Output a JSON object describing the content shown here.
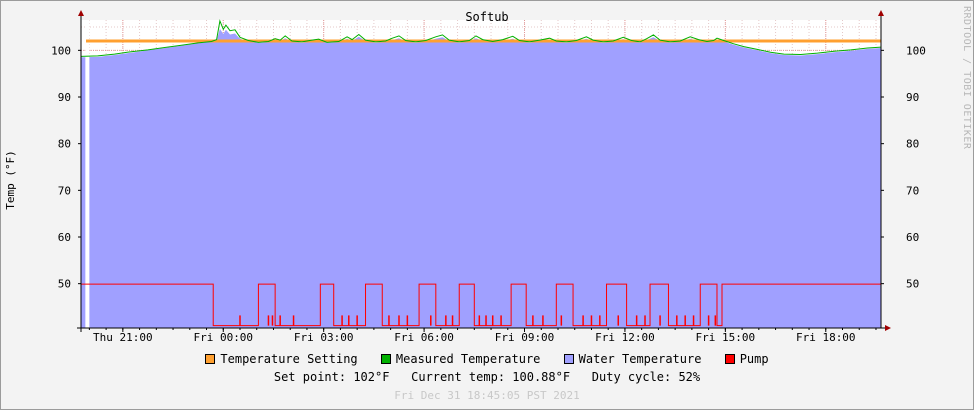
{
  "chart_data": {
    "type": "area",
    "title": "Softub",
    "ylabel": "Temp (°F)",
    "y_ticks": [
      50,
      60,
      70,
      80,
      90,
      100
    ],
    "y_tick_labels": [
      "50",
      "60",
      "70",
      "80",
      "90",
      "100"
    ],
    "ylim": [
      40.5,
      106.5
    ],
    "x_ticks": [
      {
        "t": 1.25,
        "label": "Thu 21:00"
      },
      {
        "t": 4.25,
        "label": "Fri 00:00"
      },
      {
        "t": 7.25,
        "label": "Fri 03:00"
      },
      {
        "t": 10.25,
        "label": "Fri 06:00"
      },
      {
        "t": 13.25,
        "label": "Fri 09:00"
      },
      {
        "t": 16.25,
        "label": "Fri 12:00"
      },
      {
        "t": 19.25,
        "label": "Fri 15:00"
      },
      {
        "t": 22.25,
        "label": "Fri 18:00"
      }
    ],
    "xlim": [
      0,
      23.9
    ],
    "grid": true,
    "series": [
      {
        "name": "Temperature Setting",
        "color": "#ffa030",
        "kind": "line",
        "points": [
          [
            0.15,
            102
          ],
          [
            23.9,
            102
          ]
        ]
      },
      {
        "name": "Measured Temperature",
        "color": "#00b000",
        "kind": "line",
        "points": [
          [
            0,
            98.7
          ],
          [
            0.5,
            98.8
          ],
          [
            1.0,
            99.2
          ],
          [
            1.5,
            99.7
          ],
          [
            2.0,
            100.1
          ],
          [
            2.5,
            100.6
          ],
          [
            3.0,
            101.1
          ],
          [
            3.5,
            101.6
          ],
          [
            3.9,
            101.9
          ],
          [
            4.05,
            102.3
          ],
          [
            4.15,
            106.3
          ],
          [
            4.25,
            104.5
          ],
          [
            4.33,
            105.4
          ],
          [
            4.45,
            104.2
          ],
          [
            4.6,
            104.4
          ],
          [
            4.75,
            102.8
          ],
          [
            5.0,
            102.1
          ],
          [
            5.3,
            101.7
          ],
          [
            5.6,
            101.9
          ],
          [
            5.8,
            102.5
          ],
          [
            5.95,
            102.2
          ],
          [
            6.1,
            103.1
          ],
          [
            6.3,
            102.0
          ],
          [
            6.6,
            101.8
          ],
          [
            6.9,
            102.2
          ],
          [
            7.1,
            102.4
          ],
          [
            7.35,
            101.7
          ],
          [
            7.7,
            101.9
          ],
          [
            7.95,
            102.9
          ],
          [
            8.1,
            102.3
          ],
          [
            8.3,
            103.4
          ],
          [
            8.5,
            102.2
          ],
          [
            8.8,
            101.8
          ],
          [
            9.1,
            102.0
          ],
          [
            9.3,
            102.6
          ],
          [
            9.5,
            103.1
          ],
          [
            9.7,
            102.1
          ],
          [
            10.0,
            101.8
          ],
          [
            10.3,
            102.1
          ],
          [
            10.6,
            102.9
          ],
          [
            10.8,
            103.3
          ],
          [
            11.0,
            102.2
          ],
          [
            11.3,
            101.8
          ],
          [
            11.6,
            102.1
          ],
          [
            11.8,
            103.1
          ],
          [
            12.0,
            102.3
          ],
          [
            12.3,
            101.9
          ],
          [
            12.6,
            102.3
          ],
          [
            12.9,
            103.0
          ],
          [
            13.1,
            102.1
          ],
          [
            13.4,
            101.8
          ],
          [
            13.7,
            102.2
          ],
          [
            14.0,
            102.6
          ],
          [
            14.2,
            102.0
          ],
          [
            14.5,
            101.8
          ],
          [
            14.8,
            102.1
          ],
          [
            15.1,
            102.9
          ],
          [
            15.3,
            102.2
          ],
          [
            15.6,
            101.8
          ],
          [
            15.9,
            102.0
          ],
          [
            16.2,
            102.8
          ],
          [
            16.45,
            102.1
          ],
          [
            16.7,
            101.8
          ],
          [
            16.9,
            102.5
          ],
          [
            17.1,
            103.3
          ],
          [
            17.3,
            102.2
          ],
          [
            17.6,
            101.8
          ],
          [
            17.9,
            102.0
          ],
          [
            18.2,
            102.9
          ],
          [
            18.45,
            102.3
          ],
          [
            18.7,
            101.9
          ],
          [
            18.9,
            102.1
          ],
          [
            19.0,
            102.6
          ],
          [
            19.2,
            102.1
          ],
          [
            19.5,
            101.4
          ],
          [
            19.8,
            100.8
          ],
          [
            20.2,
            100.2
          ],
          [
            20.6,
            99.6
          ],
          [
            21.0,
            99.2
          ],
          [
            21.5,
            99.1
          ],
          [
            22.0,
            99.4
          ],
          [
            22.5,
            99.8
          ],
          [
            23.0,
            100.1
          ],
          [
            23.5,
            100.5
          ],
          [
            23.9,
            100.7
          ]
        ]
      },
      {
        "name": "Water Temperature",
        "color": "#a0a0ff",
        "kind": "area",
        "points": [
          [
            0,
            98.5
          ],
          [
            0.5,
            98.6
          ],
          [
            1.0,
            99.0
          ],
          [
            1.5,
            99.5
          ],
          [
            2.0,
            100.0
          ],
          [
            2.5,
            100.5
          ],
          [
            3.0,
            101.0
          ],
          [
            3.5,
            101.5
          ],
          [
            3.9,
            101.8
          ],
          [
            4.05,
            102.1
          ],
          [
            4.15,
            104.6
          ],
          [
            4.25,
            103.5
          ],
          [
            4.33,
            104.4
          ],
          [
            4.45,
            103.4
          ],
          [
            4.6,
            103.6
          ],
          [
            4.75,
            102.5
          ],
          [
            5.0,
            101.9
          ],
          [
            5.3,
            101.6
          ],
          [
            5.6,
            101.7
          ],
          [
            5.8,
            102.2
          ],
          [
            5.95,
            102.0
          ],
          [
            6.1,
            102.6
          ],
          [
            6.3,
            101.8
          ],
          [
            6.6,
            101.6
          ],
          [
            6.9,
            101.9
          ],
          [
            7.1,
            102.1
          ],
          [
            7.35,
            101.6
          ],
          [
            7.7,
            101.7
          ],
          [
            7.95,
            102.5
          ],
          [
            8.1,
            102.0
          ],
          [
            8.3,
            102.9
          ],
          [
            8.5,
            102.0
          ],
          [
            8.8,
            101.6
          ],
          [
            9.1,
            101.8
          ],
          [
            9.3,
            102.2
          ],
          [
            9.5,
            102.6
          ],
          [
            9.7,
            101.9
          ],
          [
            10.0,
            101.6
          ],
          [
            10.3,
            101.9
          ],
          [
            10.6,
            102.5
          ],
          [
            10.8,
            102.8
          ],
          [
            11.0,
            102.0
          ],
          [
            11.3,
            101.6
          ],
          [
            11.6,
            101.9
          ],
          [
            11.8,
            102.6
          ],
          [
            12.0,
            102.0
          ],
          [
            12.3,
            101.7
          ],
          [
            12.6,
            102.0
          ],
          [
            12.9,
            102.5
          ],
          [
            13.1,
            101.9
          ],
          [
            13.4,
            101.6
          ],
          [
            13.7,
            101.9
          ],
          [
            14.0,
            102.3
          ],
          [
            14.2,
            101.8
          ],
          [
            14.5,
            101.6
          ],
          [
            14.8,
            101.9
          ],
          [
            15.1,
            102.5
          ],
          [
            15.3,
            101.9
          ],
          [
            15.6,
            101.6
          ],
          [
            15.9,
            101.8
          ],
          [
            16.2,
            102.4
          ],
          [
            16.45,
            101.9
          ],
          [
            16.7,
            101.6
          ],
          [
            16.9,
            102.2
          ],
          [
            17.1,
            102.8
          ],
          [
            17.3,
            102.0
          ],
          [
            17.6,
            101.6
          ],
          [
            17.9,
            101.8
          ],
          [
            18.2,
            102.5
          ],
          [
            18.45,
            102.0
          ],
          [
            18.7,
            101.7
          ],
          [
            18.9,
            101.9
          ],
          [
            19.0,
            102.3
          ],
          [
            19.2,
            101.9
          ],
          [
            19.5,
            101.2
          ],
          [
            19.8,
            100.6
          ],
          [
            20.2,
            100.0
          ],
          [
            20.6,
            99.4
          ],
          [
            21.0,
            99.0
          ],
          [
            21.5,
            98.9
          ],
          [
            22.0,
            99.2
          ],
          [
            22.5,
            99.6
          ],
          [
            23.0,
            99.9
          ],
          [
            23.5,
            100.3
          ],
          [
            23.9,
            100.5
          ]
        ]
      },
      {
        "name": "Pump",
        "color": "#ff0000",
        "kind": "step",
        "high": 49.9,
        "low": 41.0,
        "gaps": [
          [
            0.13,
            0.25
          ]
        ],
        "low_intervals": [
          [
            3.95,
            5.3
          ],
          [
            5.8,
            7.15
          ],
          [
            7.55,
            8.5
          ],
          [
            9.0,
            10.1
          ],
          [
            10.6,
            11.3
          ],
          [
            11.75,
            12.85
          ],
          [
            13.3,
            14.2
          ],
          [
            14.7,
            15.7
          ],
          [
            16.3,
            17.0
          ],
          [
            17.55,
            18.5
          ],
          [
            19.0,
            19.15
          ]
        ],
        "spikes": [
          4.75,
          5.6,
          5.72,
          5.95,
          6.35,
          7.8,
          8.0,
          8.25,
          9.2,
          9.5,
          9.75,
          10.45,
          10.9,
          11.1,
          11.9,
          12.1,
          12.3,
          12.55,
          13.5,
          13.8,
          14.35,
          15.0,
          15.25,
          15.5,
          16.05,
          16.6,
          16.85,
          17.3,
          17.8,
          18.05,
          18.3,
          18.75,
          18.95
        ]
      }
    ]
  },
  "legend_items": [
    {
      "label": "Temperature Setting",
      "color": "#ffa030"
    },
    {
      "label": "Measured Temperature",
      "color": "#00b000"
    },
    {
      "label": "Water Temperature",
      "color": "#a0a0ff"
    },
    {
      "label": "Pump",
      "color": "#ff0000"
    }
  ],
  "summary": {
    "set_point": "Set point: 102°F",
    "current_temp": "Current temp: 100.88°F",
    "duty_cycle": "Duty cycle: 52%"
  },
  "timestamp": "Fri Dec 31 18:45:05 PST 2021",
  "watermark": "RRDTOOL / TOBI OETIKER"
}
